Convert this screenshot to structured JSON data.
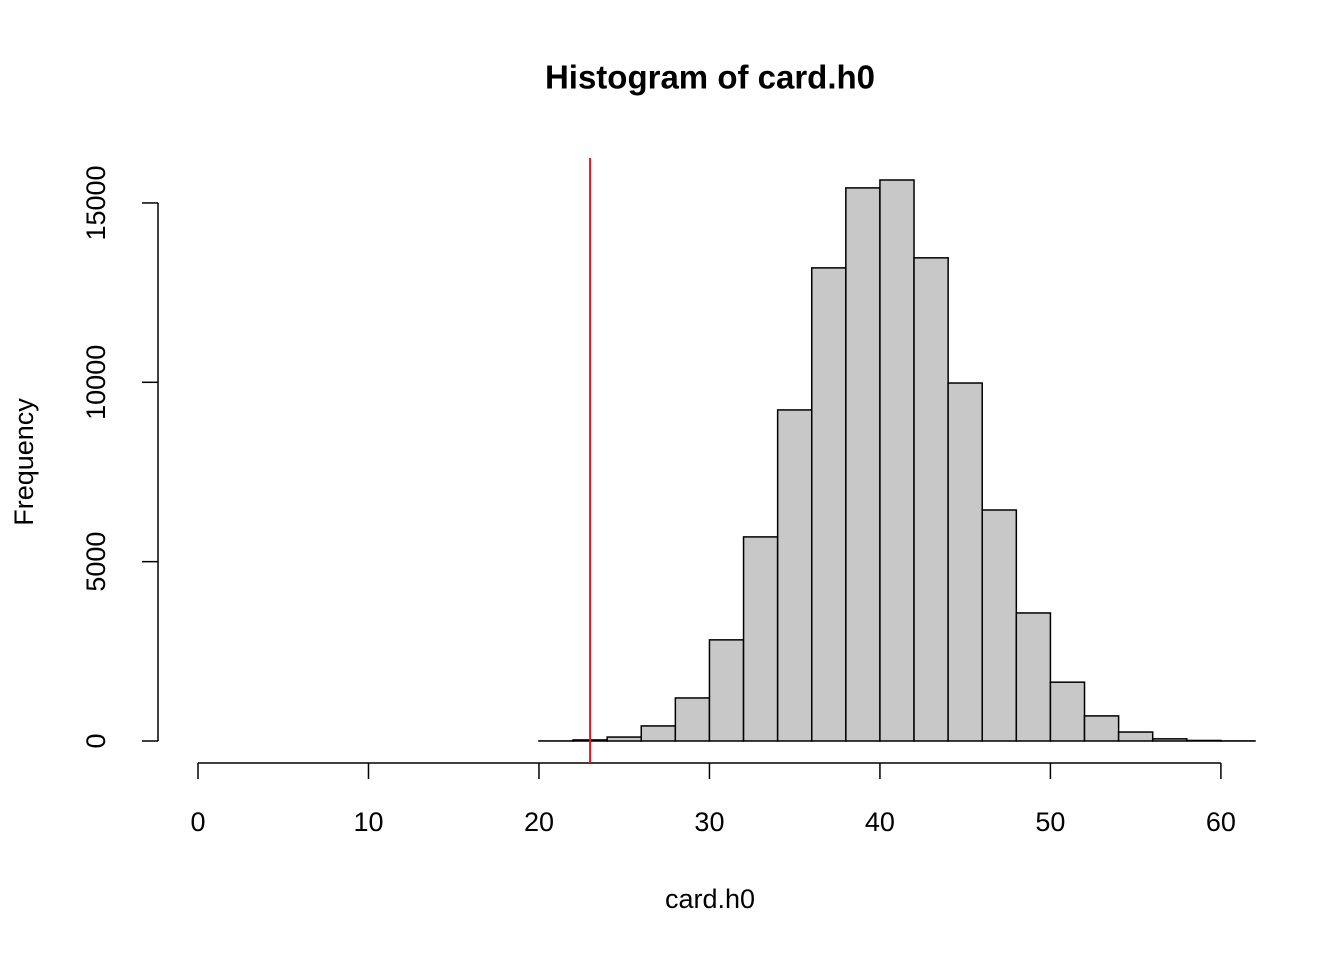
{
  "chart_data": {
    "type": "histogram",
    "title": "Histogram of card.h0",
    "x_label": "card.h0",
    "y_label": "Frequency",
    "bins": [
      18,
      20,
      22,
      24,
      26,
      28,
      30,
      32,
      34,
      36,
      38,
      40,
      42,
      44,
      46,
      48,
      50,
      52,
      54,
      56,
      58,
      60,
      62
    ],
    "values": [
      0,
      2,
      30,
      110,
      420,
      1200,
      2820,
      5690,
      9230,
      13190,
      15420,
      15640,
      13470,
      9980,
      6440,
      3570,
      1640,
      700,
      250,
      60,
      15,
      3
    ],
    "color": "#c8c8c8",
    "xlim": [
      0,
      62
    ],
    "xticks": [
      0,
      10,
      20,
      30,
      40,
      50,
      60
    ],
    "ylim": [
      0,
      15640
    ],
    "yticks": [
      0,
      5000,
      10000,
      15000
    ],
    "vline": {
      "x": 23,
      "color": "#e8141c"
    }
  }
}
